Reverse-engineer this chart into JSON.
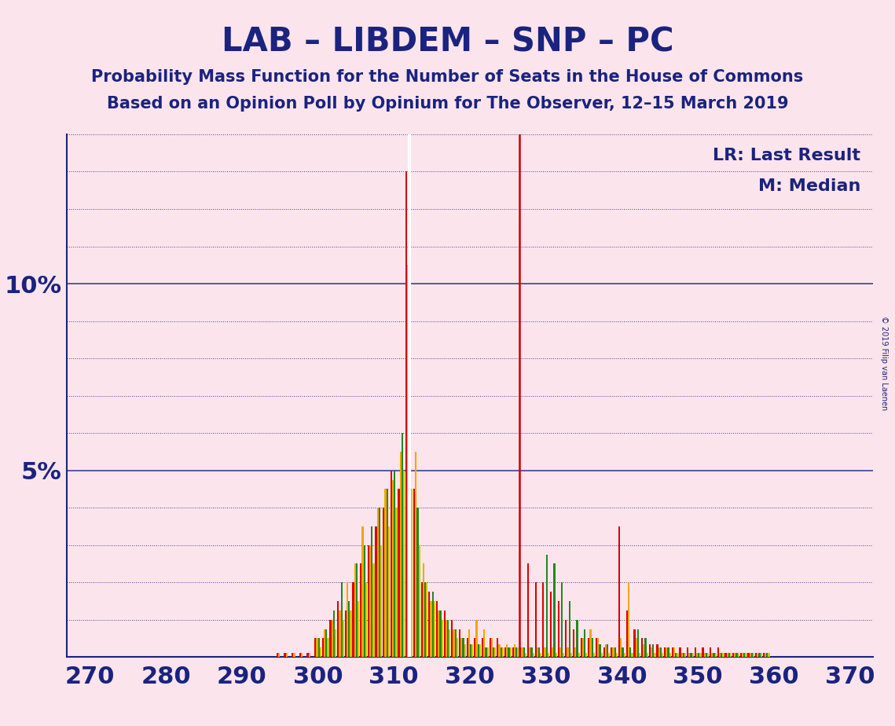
{
  "title": "LAB – LIBDEM – SNP – PC",
  "subtitle1": "Probability Mass Function for the Number of Seats in the House of Commons",
  "subtitle2": "Based on an Opinion Poll by Opinium for The Observer, 12–15 March 2019",
  "copyright": "© 2019 Filip van Laenen",
  "legend_lr": "LR: Last Result",
  "legend_m": "M: Median",
  "background_color": "#fce4ec",
  "title_color": "#1a237e",
  "bar_colors": {
    "LAB": "#dd0000",
    "LIBDEM": "#f5a500",
    "SNP": "#228822",
    "PC": "#cccc00"
  },
  "xlim": [
    267,
    373
  ],
  "ylim": [
    0,
    14.0
  ],
  "xticks": [
    270,
    280,
    290,
    300,
    310,
    320,
    330,
    340,
    350,
    360,
    370
  ],
  "last_result_x": 326.5,
  "median_x": 312.0,
  "grid_color": "#1a237e",
  "data": {
    "LAB": [
      0,
      0,
      0,
      0,
      0,
      0,
      0,
      0,
      0,
      0,
      0,
      0,
      0,
      0,
      0,
      0,
      0,
      0,
      0,
      0,
      0,
      0,
      0,
      0,
      0,
      0.1,
      0.1,
      0.1,
      0.1,
      0.1,
      0.5,
      0.5,
      1.0,
      1.5,
      1.25,
      2.0,
      2.5,
      3.0,
      3.5,
      4.0,
      5.0,
      4.5,
      13.0,
      4.5,
      2.0,
      1.75,
      1.5,
      1.25,
      1.0,
      0.75,
      0.5,
      0.5,
      0.5,
      0.5,
      0.5,
      0.25,
      0.25,
      0.25,
      2.5,
      2.0,
      2.0,
      1.75,
      1.5,
      1.0,
      0.75,
      0.5,
      0.5,
      0.5,
      0.25,
      0.25,
      3.5,
      1.25,
      0.75,
      0.5,
      0.35,
      0.35,
      0.25,
      0.25,
      0.25,
      0.25,
      0.25,
      0.25,
      0.25,
      0.25,
      0.1,
      0.1,
      0.1,
      0.1,
      0.1,
      0.1,
      0,
      0,
      0,
      0,
      0,
      0,
      0,
      0,
      0,
      0,
      0
    ],
    "LIBDEM": [
      0,
      0,
      0,
      0,
      0,
      0,
      0,
      0,
      0,
      0,
      0,
      0,
      0,
      0,
      0,
      0,
      0,
      0,
      0,
      0,
      0,
      0,
      0,
      0,
      0,
      0.1,
      0.1,
      0.1,
      0.1,
      0.1,
      0.5,
      0.75,
      1.0,
      1.25,
      2.0,
      2.5,
      3.5,
      3.0,
      4.0,
      4.5,
      4.75,
      5.5,
      10.5,
      5.5,
      2.5,
      1.5,
      1.25,
      1.0,
      0.75,
      0.5,
      0.75,
      1.0,
      0.75,
      0.5,
      0.35,
      0.35,
      0.35,
      0.25,
      0.25,
      0.25,
      0.25,
      0.25,
      0.25,
      0.25,
      0.25,
      0.5,
      0.75,
      0.5,
      0.35,
      0.25,
      0.5,
      2.0,
      0.5,
      0.35,
      0.25,
      0.25,
      0.25,
      0.25,
      0.1,
      0.1,
      0.1,
      0.1,
      0.1,
      0.1,
      0.1,
      0.1,
      0.1,
      0.1,
      0.1,
      0.1,
      0,
      0,
      0,
      0,
      0,
      0,
      0,
      0,
      0,
      0,
      0
    ],
    "SNP": [
      0,
      0,
      0,
      0,
      0,
      0,
      0,
      0,
      0,
      0,
      0,
      0,
      0,
      0,
      0,
      0,
      0,
      0,
      0,
      0,
      0,
      0,
      0,
      0,
      0,
      0,
      0,
      0,
      0,
      0,
      0.5,
      0.75,
      1.25,
      2.0,
      1.5,
      2.5,
      3.0,
      3.5,
      4.0,
      4.5,
      5.0,
      6.0,
      5.5,
      4.0,
      2.0,
      1.75,
      1.25,
      1.0,
      0.75,
      0.5,
      0.35,
      0.35,
      0.25,
      0.25,
      0.25,
      0.25,
      0.25,
      0.25,
      0.25,
      0.25,
      2.75,
      2.5,
      2.0,
      1.5,
      1.0,
      0.75,
      0.5,
      0.35,
      0.35,
      0.25,
      0.25,
      0.25,
      0.75,
      0.5,
      0.35,
      0.25,
      0.25,
      0.1,
      0.1,
      0.1,
      0.1,
      0.1,
      0.1,
      0.1,
      0.1,
      0.1,
      0.1,
      0.1,
      0.1,
      0.1,
      0,
      0,
      0,
      0,
      0,
      0,
      0,
      0,
      0,
      0,
      0
    ],
    "PC": [
      0,
      0,
      0,
      0,
      0,
      0,
      0,
      0,
      0,
      0,
      0,
      0,
      0,
      0,
      0,
      0,
      0,
      0,
      0,
      0,
      0,
      0,
      0,
      0,
      0,
      0,
      0,
      0,
      0,
      0,
      0.25,
      0.5,
      0.75,
      1.0,
      1.25,
      1.5,
      2.0,
      2.5,
      3.0,
      3.5,
      4.0,
      5.0,
      4.5,
      3.0,
      2.0,
      1.5,
      1.0,
      0.75,
      0.5,
      0.35,
      0.35,
      0.35,
      0.25,
      0.25,
      0.25,
      0.25,
      0.25,
      0.1,
      0.1,
      0.1,
      0.1,
      0.1,
      0.1,
      0.1,
      0.1,
      0.1,
      0.1,
      0.1,
      0.1,
      0.1,
      0.1,
      0.1,
      0.1,
      0.1,
      0.1,
      0.1,
      0.1,
      0.1,
      0.1,
      0.1,
      0.1,
      0.1,
      0.1,
      0.1,
      0.1,
      0.1,
      0.1,
      0.1,
      0.1,
      0.1,
      0,
      0,
      0,
      0,
      0,
      0,
      0,
      0,
      0,
      0,
      0
    ]
  }
}
